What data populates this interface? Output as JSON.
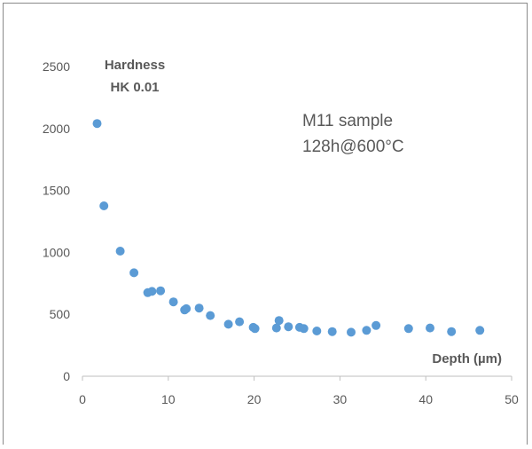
{
  "chart_data": {
    "type": "scatter",
    "ylabel_lines": [
      "Hardness",
      "HK 0.01"
    ],
    "xlabel": "Depth (µm)",
    "annotation_lines": [
      "M11 sample",
      "128h@600°C"
    ],
    "xlim": [
      0,
      50
    ],
    "ylim": [
      0,
      2500
    ],
    "x_ticks": [
      0,
      10,
      20,
      30,
      40,
      50
    ],
    "y_ticks": [
      0,
      500,
      1000,
      1500,
      2000,
      2500
    ],
    "grid": false,
    "marker_color": "#5b9bd5",
    "series": [
      {
        "points": [
          [
            1.7,
            2040
          ],
          [
            2.5,
            1375
          ],
          [
            4.4,
            1010
          ],
          [
            6.0,
            835
          ],
          [
            7.6,
            675
          ],
          [
            8.1,
            685
          ],
          [
            9.1,
            690
          ],
          [
            10.6,
            600
          ],
          [
            11.9,
            535
          ],
          [
            12.1,
            545
          ],
          [
            13.6,
            550
          ],
          [
            14.9,
            490
          ],
          [
            17.0,
            420
          ],
          [
            18.3,
            440
          ],
          [
            19.9,
            395
          ],
          [
            20.1,
            385
          ],
          [
            22.6,
            390
          ],
          [
            22.9,
            450
          ],
          [
            24.0,
            400
          ],
          [
            25.3,
            395
          ],
          [
            25.8,
            385
          ],
          [
            27.3,
            365
          ],
          [
            29.1,
            360
          ],
          [
            31.3,
            355
          ],
          [
            33.1,
            370
          ],
          [
            34.2,
            410
          ],
          [
            38.0,
            385
          ],
          [
            40.5,
            390
          ],
          [
            43.0,
            360
          ],
          [
            46.3,
            370
          ]
        ]
      }
    ]
  }
}
